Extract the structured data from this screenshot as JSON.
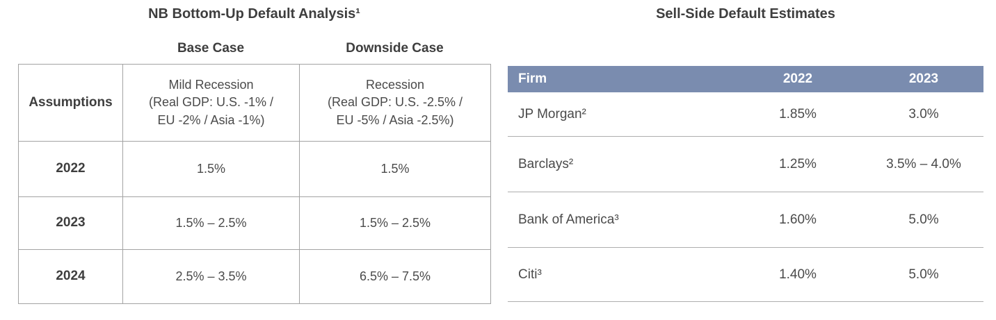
{
  "colors": {
    "header_band_bg": "#7a8caf",
    "header_band_text": "#ffffff",
    "body_text": "#414141",
    "grid_border": "#a3a3a3",
    "row_separator": "#adadad"
  },
  "left_table": {
    "title": "NB Bottom-Up Default Analysis¹",
    "case_headers": {
      "base": "Base Case",
      "downside": "Downside Case"
    },
    "assumptions_label": "Assumptions",
    "assumptions": {
      "base": "Mild Recession\n(Real GDP: U.S. -1% /\nEU -2% / Asia -1%)",
      "downside": "Recession\n(Real GDP: U.S. -2.5% /\nEU -5% / Asia -2.5%)"
    },
    "rows": [
      {
        "year": "2022",
        "base": "1.5%",
        "downside": "1.5%"
      },
      {
        "year": "2023",
        "base": "1.5% – 2.5%",
        "downside": "1.5% – 2.5%"
      },
      {
        "year": "2024",
        "base": "2.5% – 3.5%",
        "downside": "6.5% – 7.5%"
      }
    ]
  },
  "right_table": {
    "title": "Sell-Side Default Estimates",
    "headers": {
      "firm": "Firm",
      "y2022": "2022",
      "y2023": "2023"
    },
    "rows": [
      {
        "firm": "JP Morgan²",
        "y2022": "1.85%",
        "y2023": "3.0%"
      },
      {
        "firm": "Barclays²",
        "y2022": "1.25%",
        "y2023": "3.5% – 4.0%"
      },
      {
        "firm": "Bank of America³",
        "y2022": "1.60%",
        "y2023": "5.0%"
      },
      {
        "firm": "Citi³",
        "y2022": "1.40%",
        "y2023": "5.0%"
      }
    ]
  }
}
